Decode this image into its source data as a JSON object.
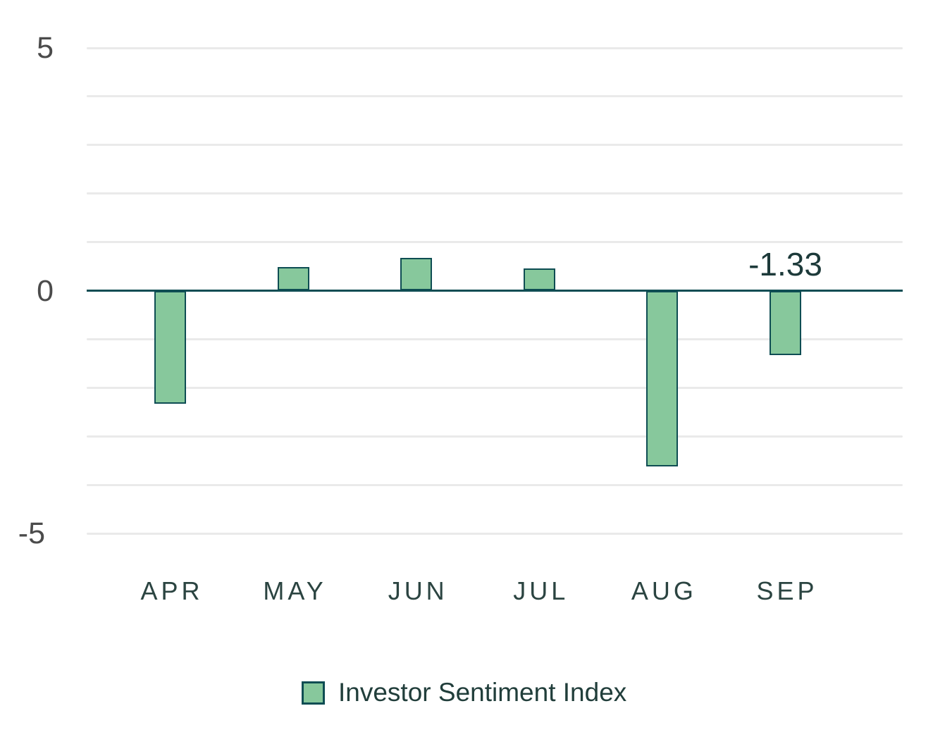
{
  "chart_data": {
    "type": "bar",
    "categories": [
      "APR",
      "MAY",
      "JUN",
      "JUL",
      "AUG",
      "SEP"
    ],
    "series": [
      {
        "name": "Investor Sentiment Index",
        "values": [
          -2.33,
          0.48,
          0.67,
          0.46,
          -3.62,
          -1.33
        ]
      }
    ],
    "title": "",
    "xlabel": "",
    "ylabel": "",
    "ylim": [
      -5,
      5
    ],
    "grid": true,
    "gridline_step": 1,
    "y_tick_labels": [
      "5",
      "0",
      "-5"
    ],
    "legend_position": "bottom",
    "data_label": {
      "index": 5,
      "text": "-1.33"
    }
  },
  "colors": {
    "bar_fill": "#87c89c",
    "bar_border": "#0e4d53",
    "zero_axis": "#0e4d53",
    "gridline": "#eaeaea",
    "y_tick_text": "#4b4b4b",
    "x_tick_text": "#2b4441",
    "data_label_text": "#1d3a3a",
    "legend_text": "#213e3b"
  }
}
